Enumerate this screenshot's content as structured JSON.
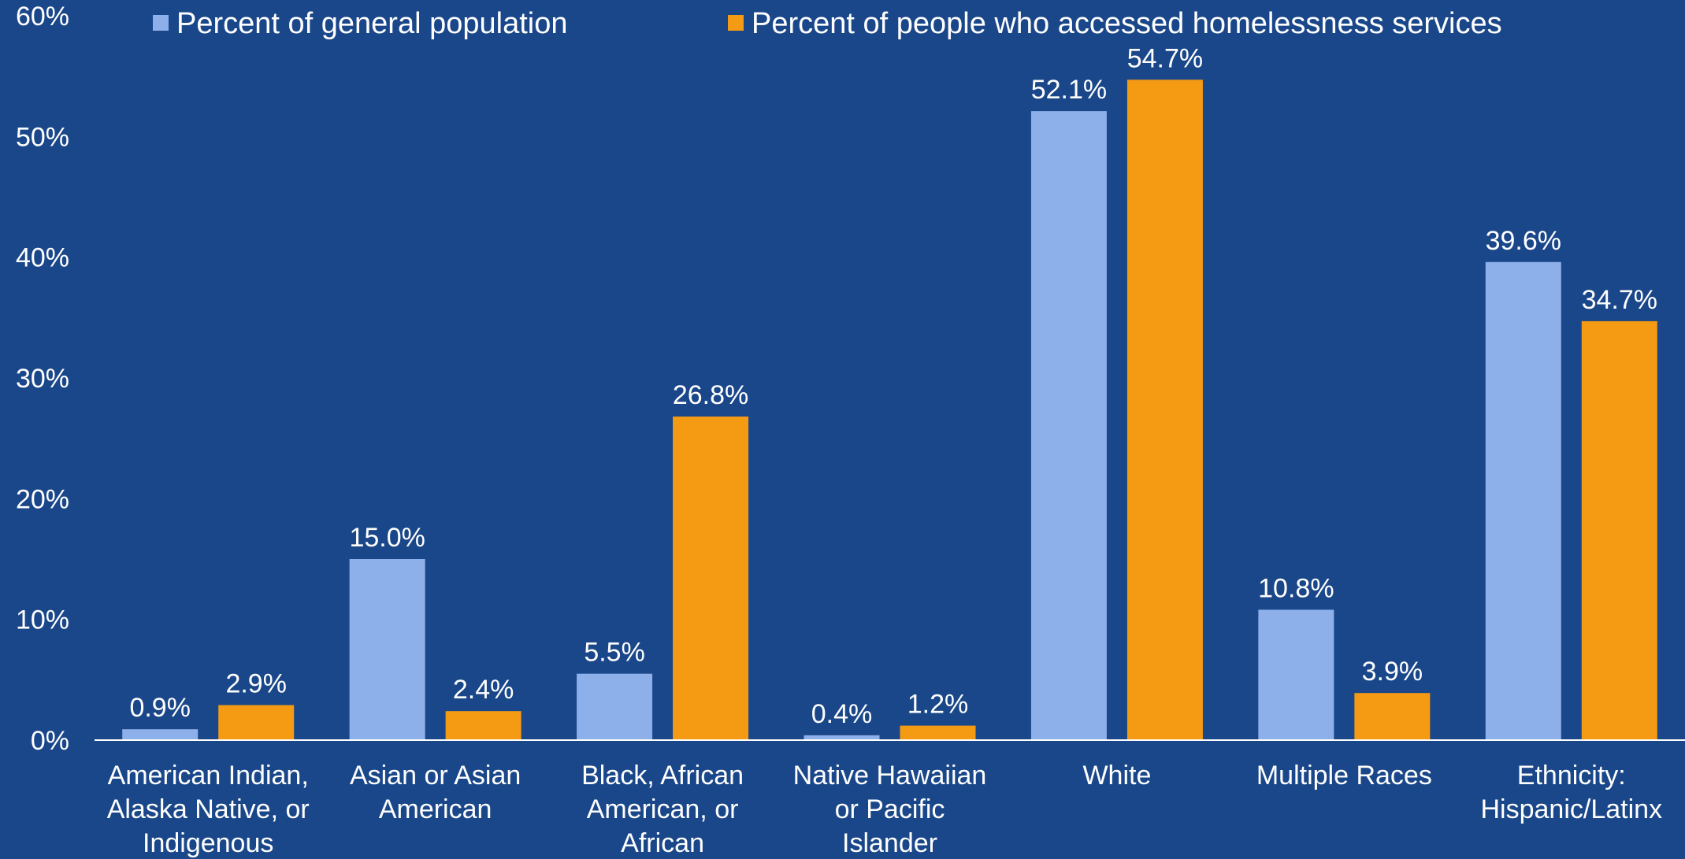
{
  "chart_data": {
    "type": "bar",
    "title": "",
    "xlabel": "",
    "ylabel": "",
    "ylim": [
      0,
      60
    ],
    "y_ticks": [
      "0%",
      "10%",
      "20%",
      "30%",
      "40%",
      "50%",
      "60%"
    ],
    "y_tick_values": [
      0,
      10,
      20,
      30,
      40,
      50,
      60
    ],
    "grid": false,
    "legend_position": "top",
    "categories": [
      [
        "American Indian,",
        "Alaska Native, or",
        "Indigenous"
      ],
      [
        "Asian or Asian",
        "American"
      ],
      [
        "Black, African",
        "American, or",
        "African"
      ],
      [
        "Native Hawaiian",
        "or Pacific",
        "Islander"
      ],
      [
        "White"
      ],
      [
        "Multiple Races"
      ],
      [
        "Ethnicity:",
        "Hispanic/Latinx"
      ]
    ],
    "series": [
      {
        "name": "Percent of general population",
        "color": "#8db0ea",
        "values": [
          0.9,
          15.0,
          5.5,
          0.4,
          52.1,
          10.8,
          39.6
        ],
        "labels": [
          "0.9%",
          "15.0%",
          "5.5%",
          "0.4%",
          "52.1%",
          "10.8%",
          "39.6%"
        ]
      },
      {
        "name": "Percent of people who accessed homelessness services",
        "color": "#f59a13",
        "values": [
          2.9,
          2.4,
          26.8,
          1.2,
          54.7,
          3.9,
          34.7
        ],
        "labels": [
          "2.9%",
          "2.4%",
          "26.8%",
          "1.2%",
          "54.7%",
          "3.9%",
          "34.7%"
        ]
      }
    ],
    "colors": {
      "background": "#1a4789",
      "axis": "#ffffff",
      "text": "#ffffff"
    }
  }
}
